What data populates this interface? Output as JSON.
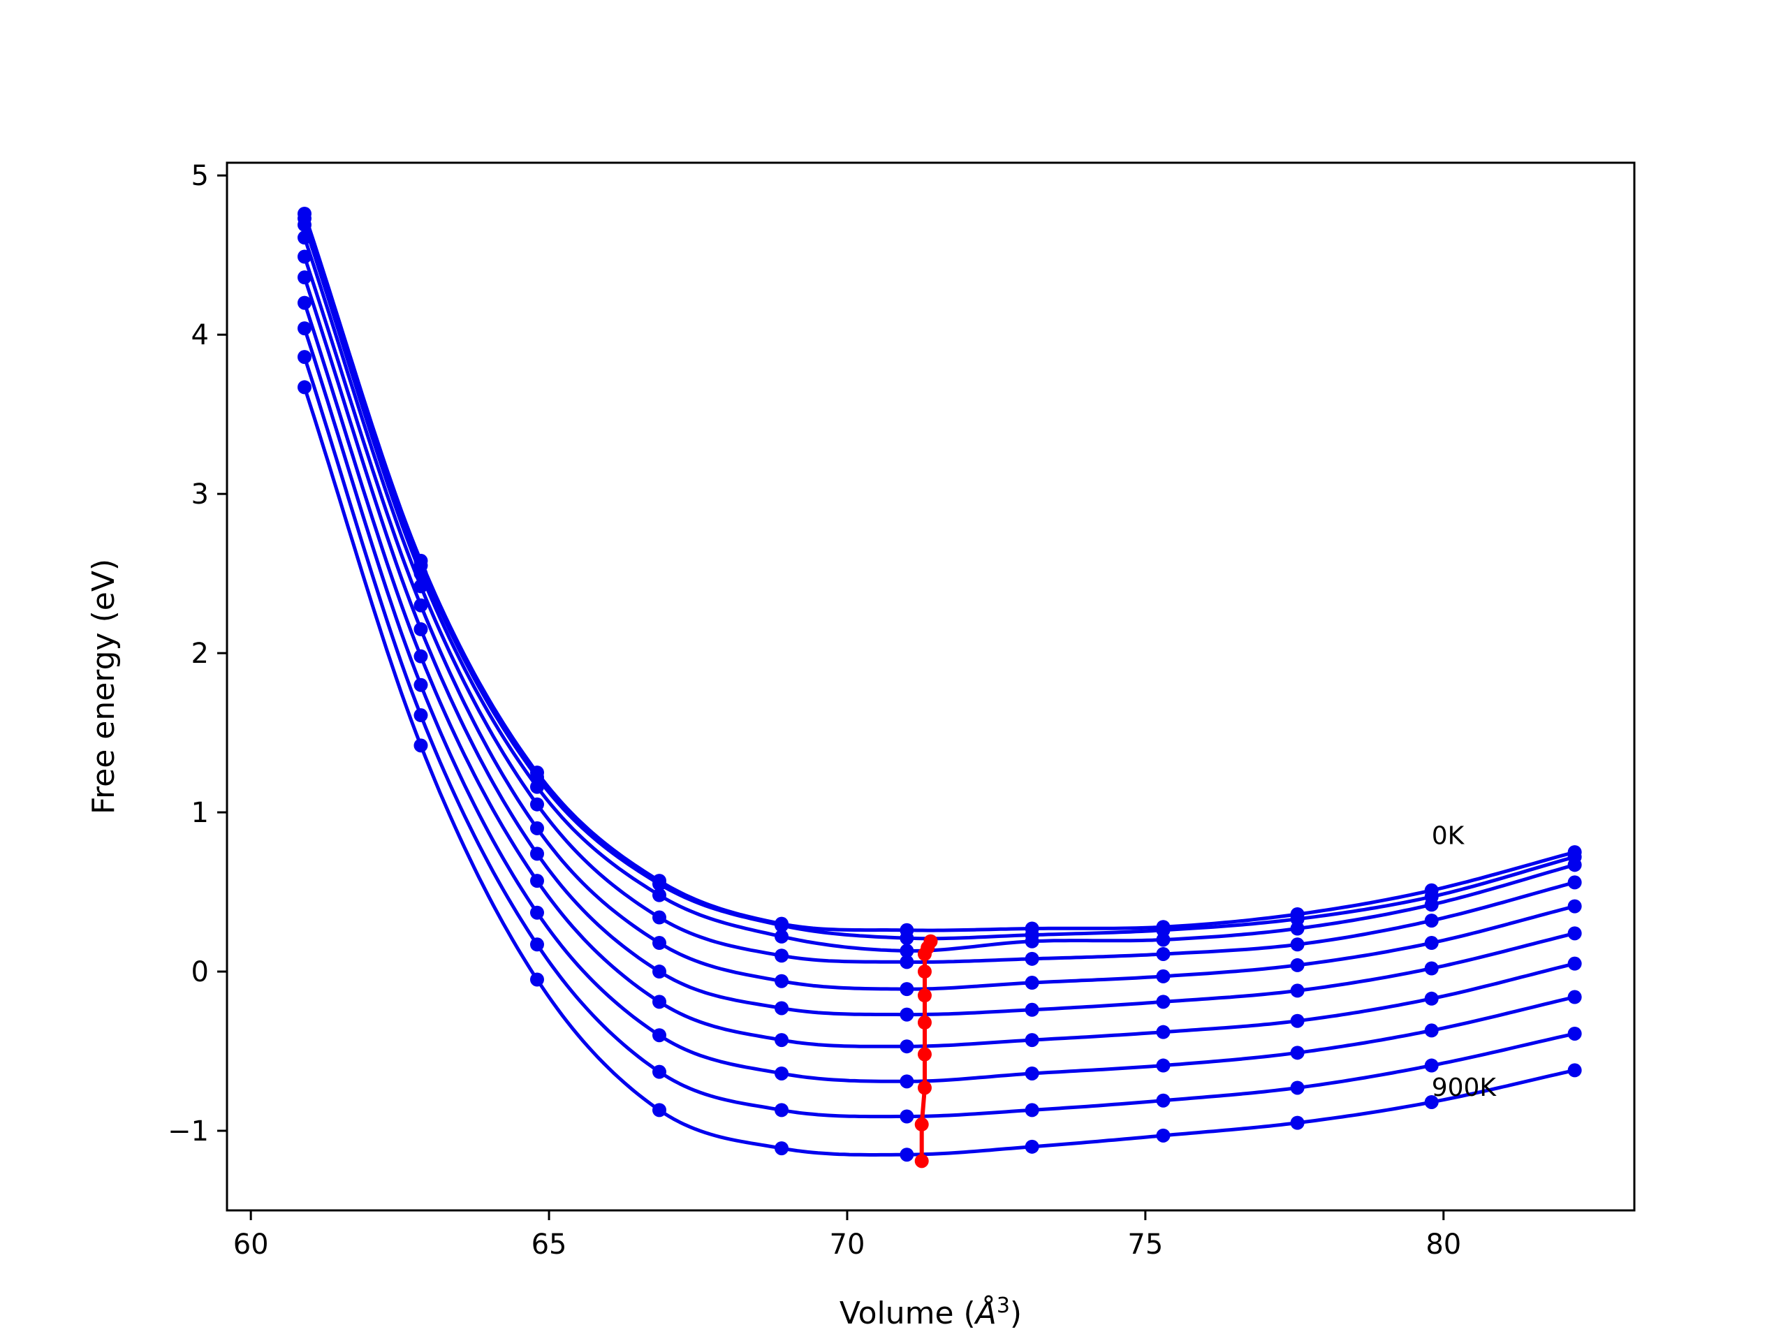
{
  "chart_data": {
    "type": "line",
    "title": "",
    "xlabel": "Volume (",
    "xlabel_unit": "Å",
    "xlabel_exp": "3",
    "xlabel_close": ")",
    "ylabel": "Free energy (eV)",
    "xlim": [
      59.6,
      83.2
    ],
    "ylim": [
      -1.5,
      5.08
    ],
    "xticks": [
      60,
      65,
      70,
      75,
      80
    ],
    "yticks": [
      -1,
      0,
      1,
      2,
      3,
      4,
      5
    ],
    "ytick_labels": [
      "−1",
      "0",
      "1",
      "2",
      "3",
      "4",
      "5"
    ],
    "grid": false,
    "legend": "none",
    "colors": {
      "curves": "#0000ee",
      "minima": "#ff0000"
    },
    "annotations": [
      {
        "text": "0K",
        "x": 79.8,
        "y": 0.8
      },
      {
        "text": "900K",
        "x": 79.8,
        "y": -0.78
      }
    ],
    "x": [
      60.9,
      62.85,
      64.8,
      66.85,
      68.9,
      71.0,
      73.1,
      75.3,
      77.55,
      79.8,
      82.2
    ],
    "series": [
      {
        "values": [
          4.76,
          2.58,
          1.25,
          0.57,
          0.3,
          0.26,
          0.27,
          0.28,
          0.36,
          0.51,
          0.75
        ],
        "min_volume": 71.4,
        "min_energy": 0.19
      },
      {
        "values": [
          4.73,
          2.55,
          1.22,
          0.55,
          0.29,
          0.21,
          0.23,
          0.26,
          0.33,
          0.47,
          0.72
        ],
        "min_volume": 71.35,
        "min_energy": 0.15
      },
      {
        "values": [
          4.69,
          2.5,
          1.16,
          0.48,
          0.22,
          0.13,
          0.19,
          0.2,
          0.27,
          0.42,
          0.67
        ],
        "min_volume": 71.3,
        "min_energy": 0.11
      },
      {
        "values": [
          4.61,
          2.42,
          1.05,
          0.34,
          0.1,
          0.06,
          0.08,
          0.11,
          0.17,
          0.32,
          0.56
        ],
        "min_volume": 71.3,
        "min_energy": 0.0
      },
      {
        "values": [
          4.49,
          2.3,
          0.9,
          0.18,
          -0.06,
          -0.11,
          -0.07,
          -0.03,
          0.04,
          0.18,
          0.41
        ],
        "min_volume": 71.3,
        "min_energy": -0.15
      },
      {
        "values": [
          4.36,
          2.15,
          0.74,
          0.0,
          -0.23,
          -0.27,
          -0.24,
          -0.19,
          -0.12,
          0.02,
          0.24
        ],
        "min_volume": 71.3,
        "min_energy": -0.32
      },
      {
        "values": [
          4.2,
          1.98,
          0.57,
          -0.19,
          -0.43,
          -0.47,
          -0.43,
          -0.38,
          -0.31,
          -0.17,
          0.05
        ],
        "min_volume": 71.3,
        "min_energy": -0.52
      },
      {
        "values": [
          4.04,
          1.8,
          0.37,
          -0.4,
          -0.64,
          -0.69,
          -0.64,
          -0.59,
          -0.51,
          -0.37,
          -0.16
        ],
        "min_volume": 71.3,
        "min_energy": -0.73
      },
      {
        "values": [
          3.86,
          1.61,
          0.17,
          -0.63,
          -0.87,
          -0.91,
          -0.87,
          -0.81,
          -0.73,
          -0.59,
          -0.39
        ],
        "min_volume": 71.25,
        "min_energy": -0.96
      },
      {
        "values": [
          3.67,
          1.42,
          -0.05,
          -0.87,
          -1.11,
          -1.15,
          -1.1,
          -1.03,
          -0.95,
          -0.82,
          -0.62
        ],
        "min_volume": 71.25,
        "min_energy": -1.19
      }
    ]
  }
}
